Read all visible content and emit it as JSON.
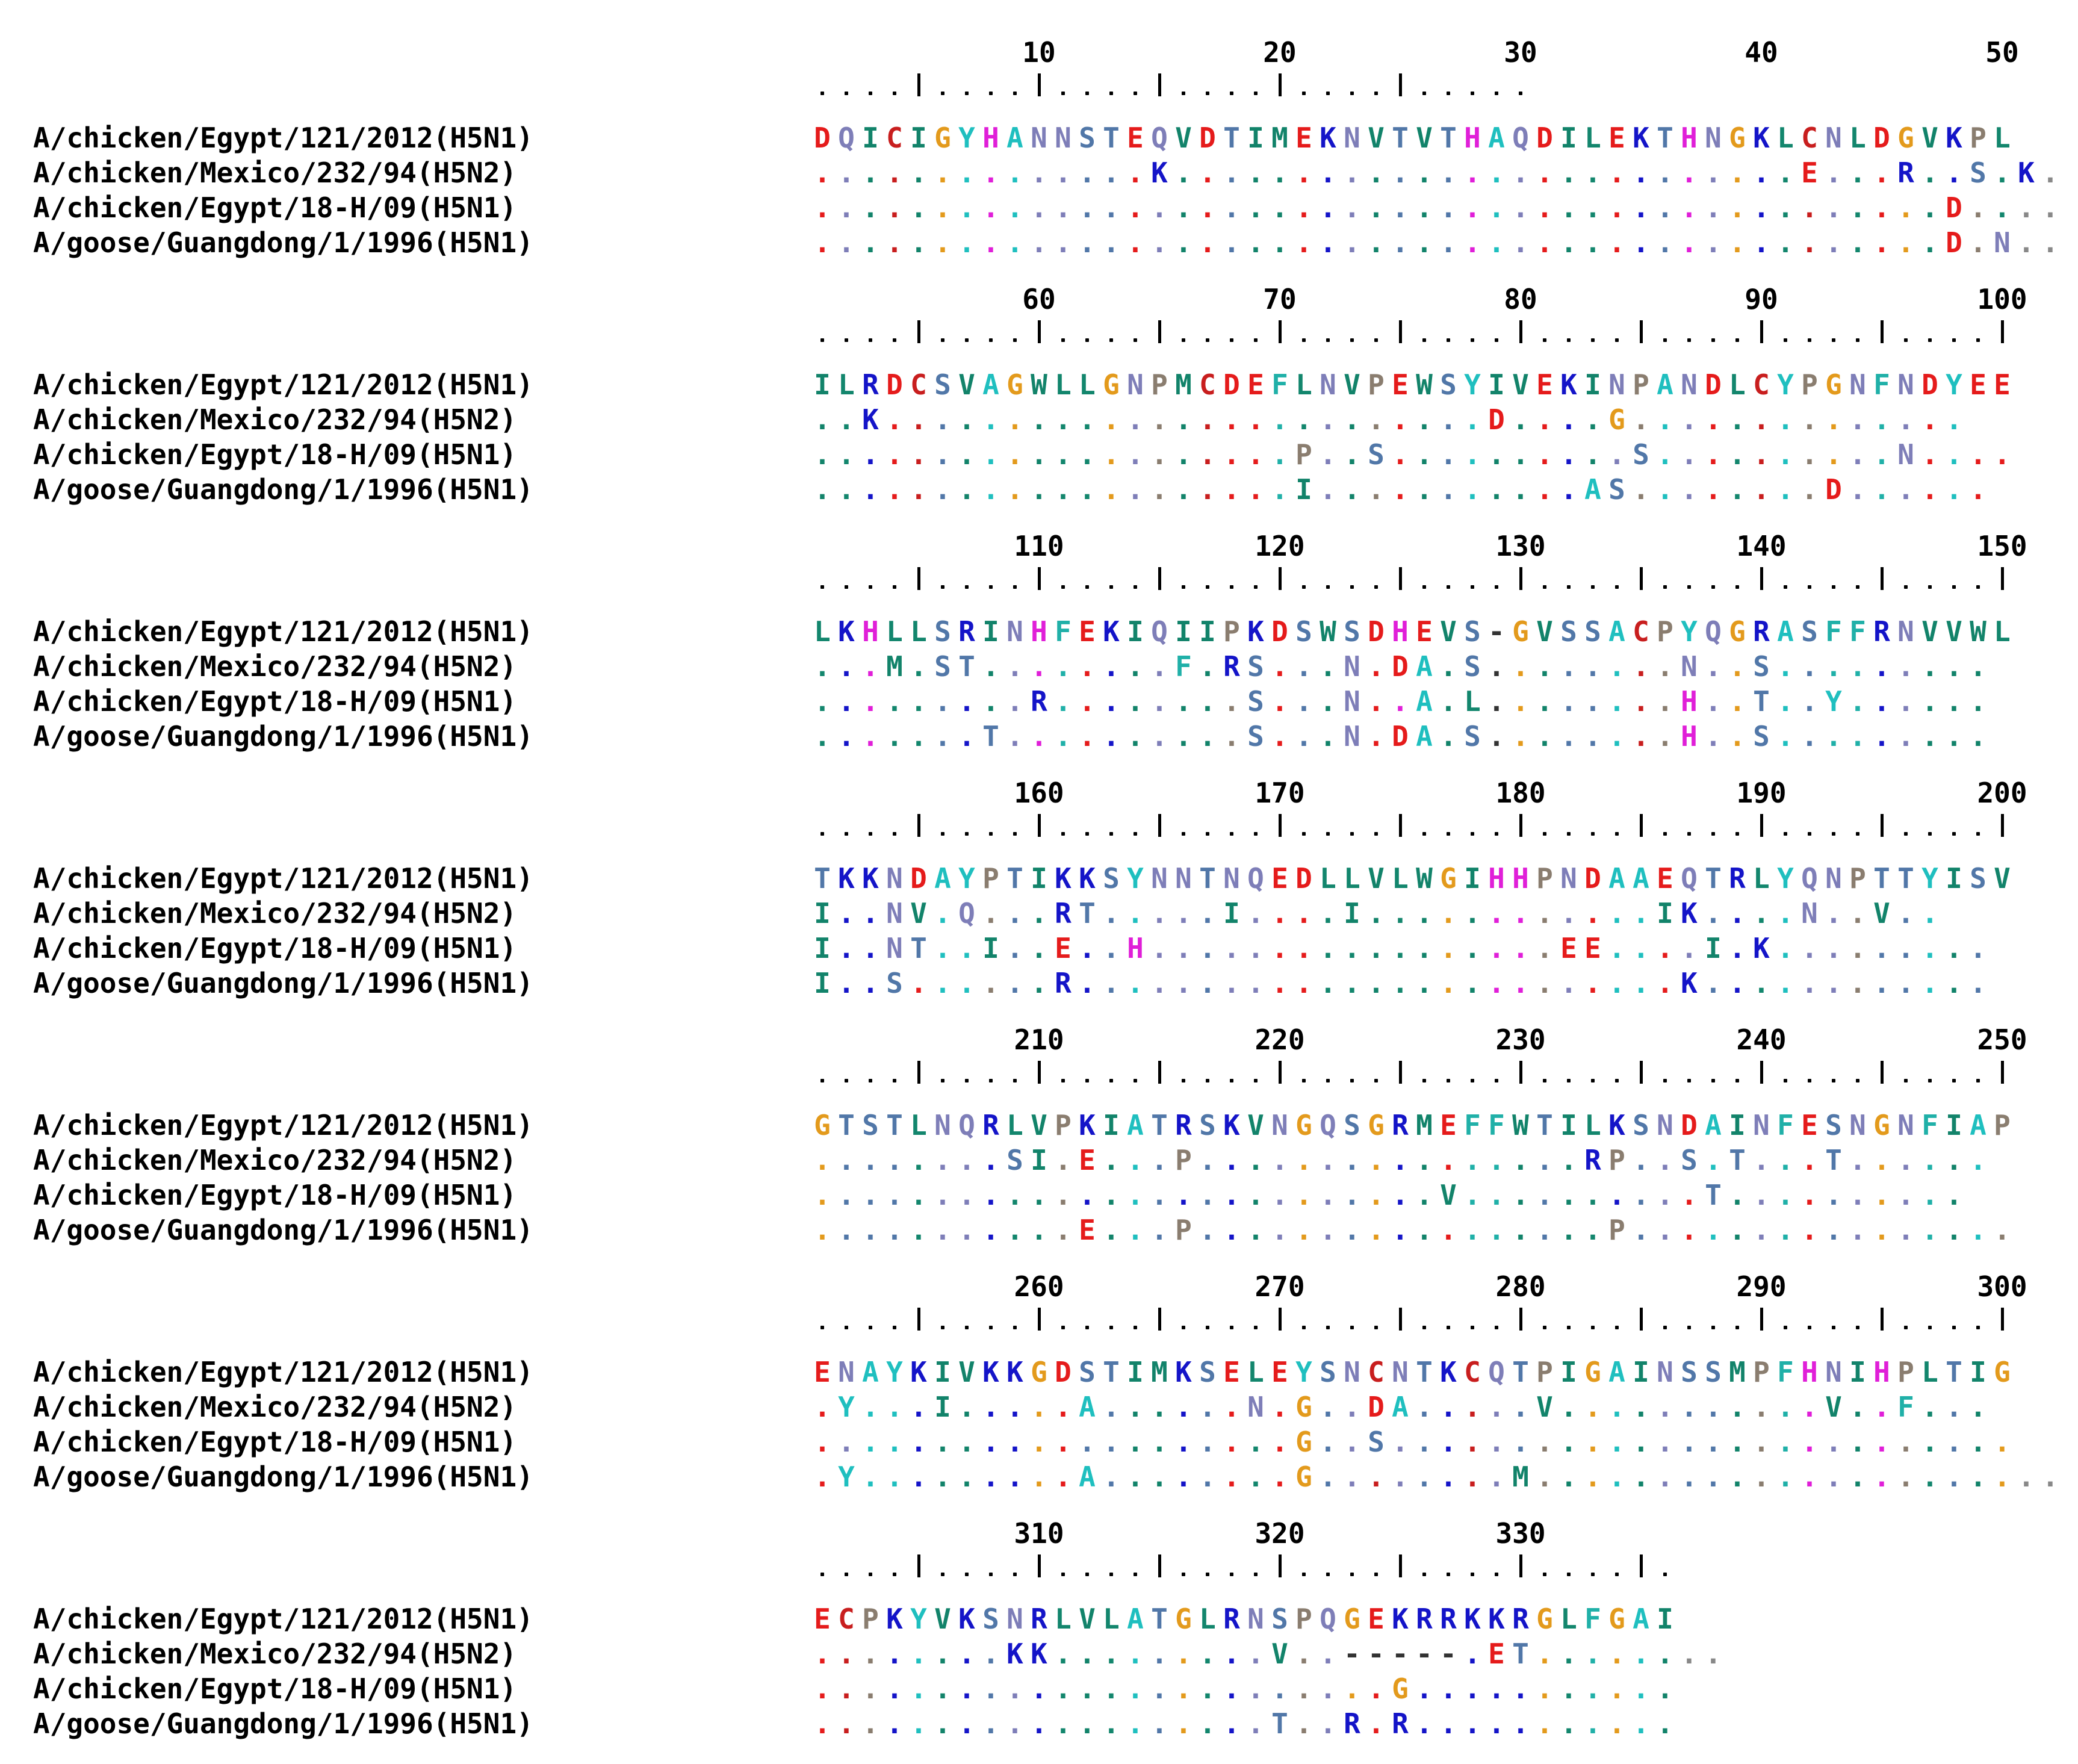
{
  "palette": {
    "A": "#1fbfbf",
    "C": "#c81e1e",
    "D": "#e51b1b",
    "E": "#e51b1b",
    "F": "#20b0a8",
    "G": "#e39a1c",
    "H": "#e01fd8",
    "I": "#12836a",
    "K": "#1414c8",
    "L": "#13866d",
    "M": "#12836a",
    "N": "#7e7eb8",
    "P": "#8a7d6f",
    "Q": "#7e7eb8",
    "R": "#1414c8",
    "S": "#5177a8",
    "T": "#5177a8",
    "V": "#12836a",
    "W": "#12836a",
    "Y": "#1fbfbf",
    "-": "#333333"
  },
  "blocks": [
    {
      "numbers": [
        10,
        20,
        30,
        40,
        50
      ],
      "ruler": "....|....|....|....|....|.....",
      "rows": [
        {
          "name": "A/chicken/Egypt/121/2012(H5N1)",
          "seq": "DQICIGYHANNSTEQVDTIMEKNVTVTHAQDILEKTHNGKLCNLDGVKPL"
        },
        {
          "name": "A/chicken/Mexico/232/94(H5N2)",
          "seq": "..............K..........................E...R..S.K....."
        },
        {
          "name": "A/chicken/Egypt/18-H/09(H5N1)",
          "seq": "...............................................D......"
        },
        {
          "name": "A/goose/Guangdong/1/1996(H5N1)",
          "seq": "...............................................D.N...."
        }
      ]
    },
    {
      "numbers": [
        60,
        70,
        80,
        90,
        100
      ],
      "ruler": "....|....|....|....|....|....|....|....|....|....|",
      "rows": [
        {
          "name": "A/chicken/Egypt/121/2012(H5N1)",
          "seq": "ILRDCSVAGWLLGNPMCDEFLNVPEWSYIVEKINPANDLCYPGNFNDYEE"
        },
        {
          "name": "A/chicken/Mexico/232/94(H5N2)",
          "seq": "..K.........................D....G.............."
        },
        {
          "name": "A/chicken/Egypt/18-H/09(H5N1)",
          "seq": "....................P..S..........S..........N...."
        },
        {
          "name": "A/goose/Guangdong/1/1996(H5N1)",
          "seq": "....................I...........AS........D......"
        }
      ]
    },
    {
      "numbers": [
        110,
        120,
        130,
        140,
        150
      ],
      "ruler": "....|....|....|....|....|....|....|....|....|....|",
      "rows": [
        {
          "name": "A/chicken/Egypt/121/2012(H5N1)",
          "seq": "LKHLLSRINHFEKIQIIPKDSWSDHEVS-GVSSACPYQGRASFFRNVVWL"
        },
        {
          "name": "A/chicken/Mexico/232/94(H5N2)",
          "seq": "...M.ST........F.RS...N.DA.S........N..S........."
        },
        {
          "name": "A/chicken/Egypt/18-H/09(H5N1)",
          "seq": ".........R........S...N..A.L........H..T..Y......"
        },
        {
          "name": "A/goose/Guangdong/1/1996(H5N1)",
          "seq": ".......T..........S...N.DA.S........H..S........."
        }
      ]
    },
    {
      "numbers": [
        160,
        170,
        180,
        190,
        200
      ],
      "ruler": "....|....|....|....|....|....|....|....|....|....|",
      "rows": [
        {
          "name": "A/chicken/Egypt/121/2012(H5N1)",
          "seq": "TKKNDAYPTIKKSYNNTNQEDLLVLWGIHHPNDAAEQTRLYQNPTTYISV"
        },
        {
          "name": "A/chicken/Mexico/232/94(H5N2)",
          "seq": "I..NV.Q...RT.....I....I............IK....N..V.."
        },
        {
          "name": "A/chicken/Egypt/18-H/09(H5N1)",
          "seq": "I..NT..I..E..H.................EE....I.K........."
        },
        {
          "name": "A/goose/Guangdong/1/1996(H5N1)",
          "seq": "I..S......R.........................K............"
        }
      ]
    },
    {
      "numbers": [
        210,
        220,
        230,
        240,
        250
      ],
      "ruler": "....|....|....|....|....|....|....|....|....|....|",
      "rows": [
        {
          "name": "A/chicken/Egypt/121/2012(H5N1)",
          "seq": "GTSTLNQRLVPKIATRSKVNGQSGRMEFFWTILKSNDAINFESNGNFIAP"
        },
        {
          "name": "A/chicken/Mexico/232/94(H5N2)",
          "seq": "........SI.E...P................RP..S.T...T......"
        },
        {
          "name": "A/chicken/Egypt/18-H/09(H5N1)",
          "seq": "..........................V..........T.........."
        },
        {
          "name": "A/goose/Guangdong/1/1996(H5N1)",
          "seq": "...........E...P.................P................"
        }
      ]
    },
    {
      "numbers": [
        260,
        270,
        280,
        290,
        300
      ],
      "ruler": "....|....|....|....|....|....|....|....|....|....|",
      "rows": [
        {
          "name": "A/chicken/Egypt/121/2012(H5N1)",
          "seq": "ENAYKIVKKGDSTIMKSELEYSNCNTKCQTPIGAINSSMPFHNIHPLTIG"
        },
        {
          "name": "A/chicken/Mexico/232/94(H5N2)",
          "seq": ".Y...I.....A......N.G..DA.....V...........V..F..."
        },
        {
          "name": "A/chicken/Egypt/18-H/09(H5N1)",
          "seq": "....................G..S.........................."
        },
        {
          "name": "A/goose/Guangdong/1/1996(H5N1)",
          "seq": ".Y.........A........G........M......................"
        }
      ]
    },
    {
      "numbers": [
        310,
        320,
        330
      ],
      "ruler": "....|....|....|....|....|....|....|.",
      "rows": [
        {
          "name": "A/chicken/Egypt/121/2012(H5N1)",
          "seq": "ECPKYVKSNRLVLATGLRNSPQGEKRRKKRGLFGAI"
        },
        {
          "name": "A/chicken/Mexico/232/94(H5N2)",
          "seq": "........KK.........V..-----.ET........"
        },
        {
          "name": "A/chicken/Egypt/18-H/09(H5N1)",
          "seq": "........................G..........."
        },
        {
          "name": "A/goose/Guangdong/1/1996(H5N1)",
          "seq": "...................T..R.R..........."
        }
      ]
    }
  ]
}
